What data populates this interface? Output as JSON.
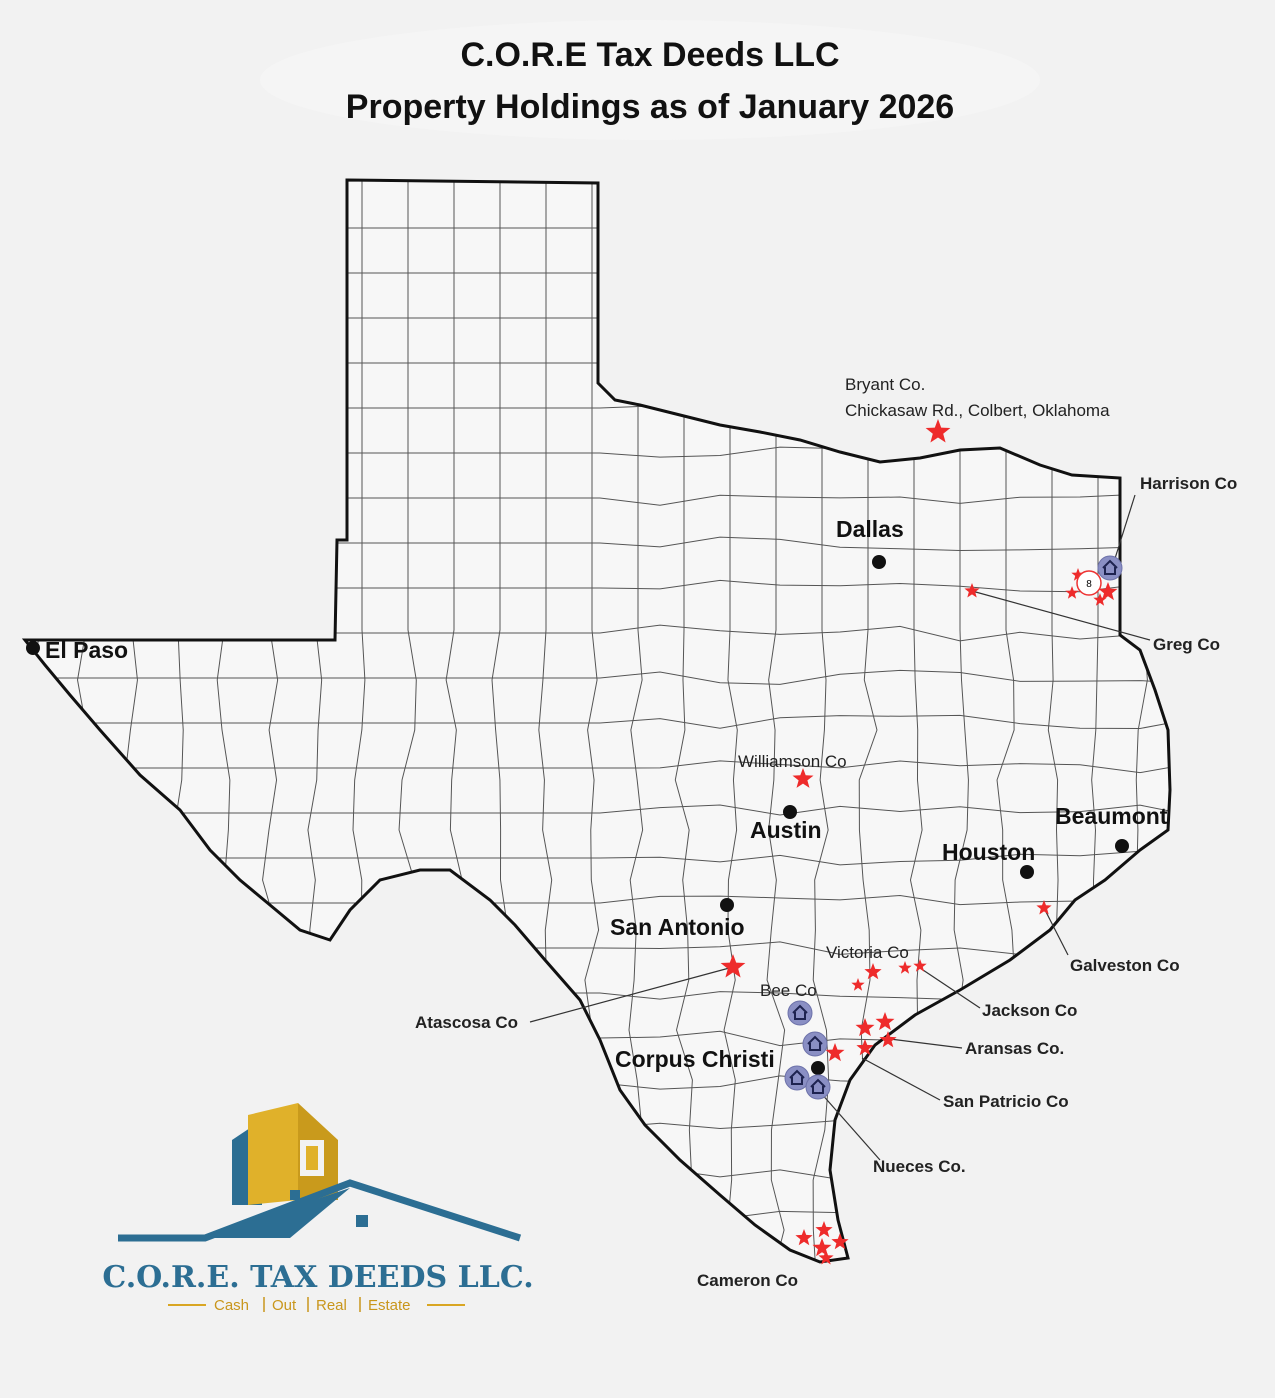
{
  "header": {
    "title": [
      "C.O.R.E Tax Deeds LLC",
      "Property Holdings as of January 2026"
    ]
  },
  "cities": [
    "Dallas",
    "El Paso",
    "Austin",
    "Houston",
    "Beaumont",
    "San Antonio",
    "Corpus Christi"
  ],
  "county_labels": [
    "Bryant Co.",
    "Chickasaw Rd., Colbert, Oklahoma",
    "Harrison Co",
    "Greg Co",
    "Williamson Co",
    "Galveston Co",
    "Victoria Co",
    "Bee Co",
    "Jackson Co",
    "Atascosa Co",
    "Aransas Co.",
    "San Patricio Co",
    "Nueces Co.",
    "Cameron Co"
  ],
  "cluster_count": 8,
  "logo": {
    "name": "C.O.R.E. TAX DEEDS LLC.",
    "tagline": [
      "Cash",
      "Out",
      "Real",
      "Estate"
    ]
  }
}
